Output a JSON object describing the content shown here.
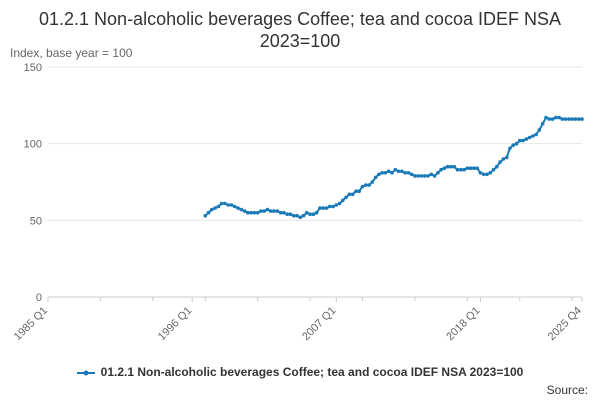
{
  "chart_data": {
    "type": "line",
    "title": "01.2.1 Non-alcoholic beverages Coffee; tea and cocoa IDEF NSA 2023=100",
    "ylabel": "Index, base year = 100",
    "xlabel": "",
    "ylim": [
      0,
      150
    ],
    "yticks": [
      0,
      50,
      100,
      150
    ],
    "xlim": [
      "1985 Q1",
      "2025 Q4"
    ],
    "xticks": [
      "1985 Q1",
      "1996 Q1",
      "2007 Q1",
      "2018 Q1",
      "2025 Q4"
    ],
    "grid": true,
    "legend_position": "bottom",
    "color": "#1a7ab8",
    "series": [
      {
        "name": "01.2.1 Non-alcoholic beverages Coffee; tea and cocoa IDEF NSA 2023=100",
        "points": [
          [
            "1997 Q1",
            53
          ],
          [
            "1997 Q2",
            55
          ],
          [
            "1997 Q3",
            57
          ],
          [
            "1997 Q4",
            58
          ],
          [
            "1998 Q1",
            59
          ],
          [
            "1998 Q2",
            61
          ],
          [
            "1998 Q3",
            61
          ],
          [
            "1998 Q4",
            60
          ],
          [
            "1999 Q1",
            60
          ],
          [
            "1999 Q2",
            59
          ],
          [
            "1999 Q3",
            58
          ],
          [
            "1999 Q4",
            57
          ],
          [
            "2000 Q1",
            56
          ],
          [
            "2000 Q2",
            55
          ],
          [
            "2000 Q3",
            55
          ],
          [
            "2000 Q4",
            55
          ],
          [
            "2001 Q1",
            55
          ],
          [
            "2001 Q2",
            56
          ],
          [
            "2001 Q3",
            56
          ],
          [
            "2001 Q4",
            57
          ],
          [
            "2002 Q1",
            56
          ],
          [
            "2002 Q2",
            56
          ],
          [
            "2002 Q3",
            56
          ],
          [
            "2002 Q4",
            55
          ],
          [
            "2003 Q1",
            55
          ],
          [
            "2003 Q2",
            54
          ],
          [
            "2003 Q3",
            54
          ],
          [
            "2003 Q4",
            53
          ],
          [
            "2004 Q1",
            53
          ],
          [
            "2004 Q2",
            52
          ],
          [
            "2004 Q3",
            53
          ],
          [
            "2004 Q4",
            55
          ],
          [
            "2005 Q1",
            54
          ],
          [
            "2005 Q2",
            54
          ],
          [
            "2005 Q3",
            55
          ],
          [
            "2005 Q4",
            58
          ],
          [
            "2006 Q1",
            58
          ],
          [
            "2006 Q2",
            58
          ],
          [
            "2006 Q3",
            59
          ],
          [
            "2006 Q4",
            59
          ],
          [
            "2007 Q1",
            60
          ],
          [
            "2007 Q2",
            61
          ],
          [
            "2007 Q3",
            63
          ],
          [
            "2007 Q4",
            65
          ],
          [
            "2008 Q1",
            67
          ],
          [
            "2008 Q2",
            67
          ],
          [
            "2008 Q3",
            69
          ],
          [
            "2008 Q4",
            69
          ],
          [
            "2009 Q1",
            72
          ],
          [
            "2009 Q2",
            73
          ],
          [
            "2009 Q3",
            73
          ],
          [
            "2009 Q4",
            75
          ],
          [
            "2010 Q1",
            78
          ],
          [
            "2010 Q2",
            80
          ],
          [
            "2010 Q3",
            81
          ],
          [
            "2010 Q4",
            81
          ],
          [
            "2011 Q1",
            82
          ],
          [
            "2011 Q2",
            81
          ],
          [
            "2011 Q3",
            83
          ],
          [
            "2011 Q4",
            82
          ],
          [
            "2012 Q1",
            82
          ],
          [
            "2012 Q2",
            81
          ],
          [
            "2012 Q3",
            81
          ],
          [
            "2012 Q4",
            80
          ],
          [
            "2013 Q1",
            79
          ],
          [
            "2013 Q2",
            79
          ],
          [
            "2013 Q3",
            79
          ],
          [
            "2013 Q4",
            79
          ],
          [
            "2014 Q1",
            79
          ],
          [
            "2014 Q2",
            80
          ],
          [
            "2014 Q3",
            79
          ],
          [
            "2014 Q4",
            81
          ],
          [
            "2015 Q1",
            83
          ],
          [
            "2015 Q2",
            84
          ],
          [
            "2015 Q3",
            85
          ],
          [
            "2015 Q4",
            85
          ],
          [
            "2016 Q1",
            85
          ],
          [
            "2016 Q2",
            83
          ],
          [
            "2016 Q3",
            83
          ],
          [
            "2016 Q4",
            83
          ],
          [
            "2017 Q1",
            84
          ],
          [
            "2017 Q2",
            84
          ],
          [
            "2017 Q3",
            84
          ],
          [
            "2017 Q4",
            84
          ],
          [
            "2018 Q1",
            81
          ],
          [
            "2018 Q2",
            80
          ],
          [
            "2018 Q3",
            80
          ],
          [
            "2018 Q4",
            81
          ],
          [
            "2019 Q1",
            83
          ],
          [
            "2019 Q2",
            85
          ],
          [
            "2019 Q3",
            88
          ],
          [
            "2019 Q4",
            90
          ],
          [
            "2020 Q1",
            91
          ],
          [
            "2020 Q2",
            97
          ],
          [
            "2020 Q3",
            99
          ],
          [
            "2020 Q4",
            100
          ],
          [
            "2021 Q1",
            102
          ],
          [
            "2021 Q2",
            102
          ],
          [
            "2021 Q3",
            103
          ],
          [
            "2021 Q4",
            104
          ],
          [
            "2022 Q1",
            105
          ],
          [
            "2022 Q2",
            106
          ],
          [
            "2022 Q3",
            109
          ],
          [
            "2022 Q4",
            113
          ],
          [
            "2023 Q1",
            117
          ],
          [
            "2023 Q2",
            116
          ],
          [
            "2023 Q3",
            116
          ],
          [
            "2023 Q4",
            117
          ],
          [
            "2024 Q1",
            117
          ],
          [
            "2024 Q2",
            116
          ],
          [
            "2024 Q3",
            116
          ],
          [
            "2024 Q4",
            116
          ],
          [
            "2025 Q1",
            116
          ],
          [
            "2025 Q2",
            116
          ],
          [
            "2025 Q3",
            116
          ],
          [
            "2025 Q4",
            116
          ]
        ]
      }
    ]
  },
  "source_label": "Source:"
}
